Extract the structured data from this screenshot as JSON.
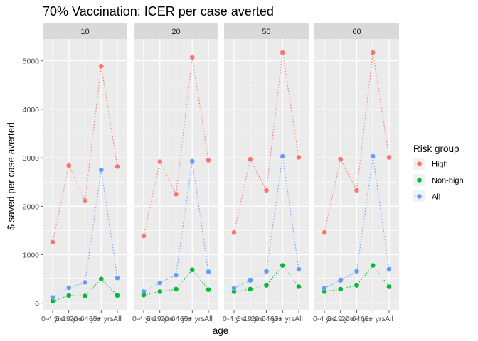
{
  "chart_data": {
    "type": "line",
    "title": "70% Vaccination: ICER per case averted",
    "xlabel": "age",
    "ylabel": "$ saved per case averted",
    "categories": [
      "0-4 yrs",
      "5-19 yrs",
      "20-64 yrs",
      "65+ yrs",
      "All"
    ],
    "ylim": [
      -150,
      5450
    ],
    "yticks": [
      0,
      1000,
      2000,
      3000,
      4000,
      5000
    ],
    "grid": true,
    "line_style": "dotted",
    "legend": {
      "title": "Risk group",
      "position": "right",
      "entries": [
        "High",
        "Non-high",
        "All"
      ]
    },
    "colors": {
      "High": "#f8766d",
      "Non-high": "#00ba38",
      "All": "#619cff"
    },
    "facets": [
      {
        "label": "10",
        "series": [
          {
            "name": "High",
            "values": [
              1260,
              2840,
              2110,
              4890,
              2820
            ]
          },
          {
            "name": "Non-high",
            "values": [
              40,
              160,
              150,
              500,
              160
            ]
          },
          {
            "name": "All",
            "values": [
              120,
              320,
              430,
              2750,
              520
            ]
          }
        ]
      },
      {
        "label": "20",
        "series": [
          {
            "name": "High",
            "values": [
              1390,
              2920,
              2250,
              5070,
              2950
            ]
          },
          {
            "name": "Non-high",
            "values": [
              170,
              240,
              290,
              690,
              280
            ]
          },
          {
            "name": "All",
            "values": [
              240,
              420,
              580,
              2930,
              650
            ]
          }
        ]
      },
      {
        "label": "50",
        "series": [
          {
            "name": "High",
            "values": [
              1460,
              2970,
              2330,
              5170,
              3010
            ]
          },
          {
            "name": "Non-high",
            "values": [
              240,
              290,
              370,
              780,
              340
            ]
          },
          {
            "name": "All",
            "values": [
              310,
              470,
              660,
              3030,
              700
            ]
          }
        ]
      },
      {
        "label": "60",
        "series": [
          {
            "name": "High",
            "values": [
              1460,
              2970,
              2330,
              5170,
              3010
            ]
          },
          {
            "name": "Non-high",
            "values": [
              240,
              290,
              370,
              780,
              340
            ]
          },
          {
            "name": "All",
            "values": [
              310,
              470,
              660,
              3030,
              700
            ]
          }
        ]
      }
    ]
  }
}
